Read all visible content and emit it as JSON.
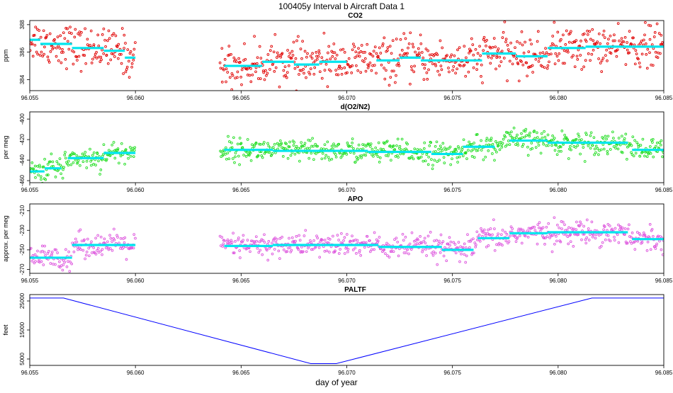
{
  "figure": {
    "title": "100405y   Interval b Aircraft Data 1",
    "xlabel": "day of year"
  },
  "chart_data": [
    {
      "id": "co2",
      "type": "scatter",
      "title": "CO2",
      "ylabel": "ppm",
      "xlim": [
        96.055,
        96.085
      ],
      "ylim": [
        383.2,
        388.3
      ],
      "x_ticks": [
        96.055,
        96.06,
        96.065,
        96.07,
        96.075,
        96.08,
        96.085
      ],
      "x_tick_labels": [
        "96.055",
        "96.060",
        "96.065",
        "96.070",
        "96.075",
        "96.080",
        "96.085"
      ],
      "y_ticks": [
        384,
        386,
        388
      ],
      "y_tick_labels": [
        "384",
        "386",
        "388"
      ],
      "point_color": "#e00000",
      "noise_sd": 0.75,
      "gap": [
        96.06,
        96.064
      ],
      "mean_line": {
        "color": "#00e5ee",
        "segments": [
          {
            "x0": 96.055,
            "x1": 96.0555,
            "y": 386.9
          },
          {
            "x0": 96.0555,
            "x1": 96.057,
            "y": 386.6
          },
          {
            "x0": 96.057,
            "x1": 96.0585,
            "y": 386.3
          },
          {
            "x0": 96.0585,
            "x1": 96.0595,
            "y": 386.1
          },
          {
            "x0": 96.0595,
            "x1": 96.06,
            "y": 385.6
          },
          {
            "x0": 96.0642,
            "x1": 96.066,
            "y": 385.0
          },
          {
            "x0": 96.066,
            "x1": 96.0675,
            "y": 385.3
          },
          {
            "x0": 96.0675,
            "x1": 96.0687,
            "y": 385.1
          },
          {
            "x0": 96.0687,
            "x1": 96.07,
            "y": 385.3
          },
          {
            "x0": 96.0714,
            "x1": 96.0725,
            "y": 385.4
          },
          {
            "x0": 96.0725,
            "x1": 96.0735,
            "y": 385.6
          },
          {
            "x0": 96.0735,
            "x1": 96.0764,
            "y": 385.4
          },
          {
            "x0": 96.0764,
            "x1": 96.078,
            "y": 385.9
          },
          {
            "x0": 96.078,
            "x1": 96.0795,
            "y": 385.7
          },
          {
            "x0": 96.0795,
            "x1": 96.0813,
            "y": 386.3
          },
          {
            "x0": 96.0813,
            "x1": 96.0835,
            "y": 386.4
          },
          {
            "x0": 96.0835,
            "x1": 96.085,
            "y": 386.4
          }
        ]
      }
    },
    {
      "id": "o2n2",
      "type": "scatter",
      "title": "d(O2/N2)",
      "ylabel": "per meg",
      "xlim": [
        96.055,
        96.085
      ],
      "ylim": [
        -462,
        -393
      ],
      "x_ticks": [
        96.055,
        96.06,
        96.065,
        96.07,
        96.075,
        96.08,
        96.085
      ],
      "x_tick_labels": [
        "96.055",
        "96.060",
        "96.065",
        "96.070",
        "96.075",
        "96.080",
        "96.085"
      ],
      "y_ticks": [
        -460,
        -440,
        -420,
        -400
      ],
      "y_tick_labels": [
        "-460",
        "-440",
        "-420",
        "-400"
      ],
      "point_color": "#22dd22",
      "noise_sd": 5.5,
      "gap": [
        96.06,
        96.064
      ],
      "mean_line": {
        "color": "#00e5ee",
        "segments": [
          {
            "x0": 96.055,
            "x1": 96.0557,
            "y": -451
          },
          {
            "x0": 96.0557,
            "x1": 96.0565,
            "y": -448
          },
          {
            "x0": 96.0568,
            "x1": 96.0585,
            "y": -438
          },
          {
            "x0": 96.0585,
            "x1": 96.06,
            "y": -433
          },
          {
            "x0": 96.0642,
            "x1": 96.0665,
            "y": -430
          },
          {
            "x0": 96.0665,
            "x1": 96.071,
            "y": -431
          },
          {
            "x0": 96.071,
            "x1": 96.074,
            "y": -432
          },
          {
            "x0": 96.074,
            "x1": 96.0755,
            "y": -434
          },
          {
            "x0": 96.0755,
            "x1": 96.077,
            "y": -427
          },
          {
            "x0": 96.0777,
            "x1": 96.0795,
            "y": -421
          },
          {
            "x0": 96.0795,
            "x1": 96.0833,
            "y": -423
          },
          {
            "x0": 96.0835,
            "x1": 96.085,
            "y": -430
          }
        ]
      }
    },
    {
      "id": "apo",
      "type": "scatter",
      "title": "APO",
      "ylabel": "approx. per meg",
      "xlim": [
        96.055,
        96.085
      ],
      "ylim": [
        -274,
        -203
      ],
      "x_ticks": [
        96.055,
        96.06,
        96.065,
        96.07,
        96.075,
        96.08,
        96.085
      ],
      "x_tick_labels": [
        "96.055",
        "96.060",
        "96.065",
        "96.070",
        "96.075",
        "96.080",
        "96.085"
      ],
      "y_ticks": [
        -270,
        -250,
        -230,
        -210
      ],
      "y_tick_labels": [
        "-270",
        "-250",
        "-230",
        "-210"
      ],
      "point_color": "#dd55dd",
      "noise_sd": 6,
      "gap": [
        96.06,
        96.064
      ],
      "mean_line": {
        "color": "#00e5ee",
        "segments": [
          {
            "x0": 96.055,
            "x1": 96.057,
            "y": -258
          },
          {
            "x0": 96.057,
            "x1": 96.06,
            "y": -245
          },
          {
            "x0": 96.0642,
            "x1": 96.0665,
            "y": -246
          },
          {
            "x0": 96.0665,
            "x1": 96.0715,
            "y": -245
          },
          {
            "x0": 96.0715,
            "x1": 96.0745,
            "y": -247
          },
          {
            "x0": 96.0745,
            "x1": 96.076,
            "y": -250
          },
          {
            "x0": 96.0762,
            "x1": 96.0777,
            "y": -238
          },
          {
            "x0": 96.0777,
            "x1": 96.0795,
            "y": -233
          },
          {
            "x0": 96.0795,
            "x1": 96.0833,
            "y": -232
          },
          {
            "x0": 96.0835,
            "x1": 96.085,
            "y": -239
          }
        ]
      }
    },
    {
      "id": "paltf",
      "type": "line",
      "title": "PALTF",
      "ylabel": "feet",
      "xlim": [
        96.055,
        96.085
      ],
      "ylim": [
        2800,
        27200
      ],
      "x_ticks": [
        96.055,
        96.06,
        96.065,
        96.07,
        96.075,
        96.08,
        96.085
      ],
      "x_tick_labels": [
        "96.055",
        "96.060",
        "96.065",
        "96.070",
        "96.075",
        "96.080",
        "96.085"
      ],
      "y_ticks": [
        5000,
        15000,
        25000
      ],
      "y_tick_labels": [
        "5000",
        "15000",
        "25000"
      ],
      "line_color": "#0000ff",
      "x": [
        96.055,
        96.0566,
        96.0683,
        96.0695,
        96.0816,
        96.085
      ],
      "y": [
        26000,
        26000,
        3400,
        3400,
        26000,
        26000
      ]
    }
  ]
}
